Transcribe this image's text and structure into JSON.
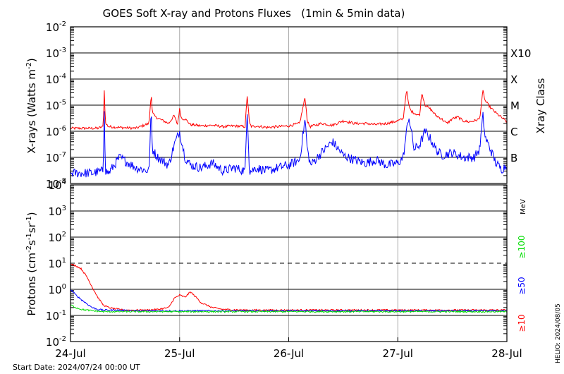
{
  "chart_data": [
    {
      "type": "line",
      "title": "GOES Soft X-ray and Protons Fluxes   (1min & 5min data)",
      "ylabel": "X-rays (Watts m",
      "ylabel_sup": "-2",
      "ylabel_close": ")",
      "y2label": "Xray Class",
      "yscale": "log",
      "ylim": [
        1e-08,
        0.01
      ],
      "xlim": [
        0,
        4
      ],
      "grid": "horizontal at each decade, vertical at each day",
      "y_ticks": [
        {
          "base": "10",
          "exp": "-2"
        },
        {
          "base": "10",
          "exp": "-3"
        },
        {
          "base": "10",
          "exp": "-4"
        },
        {
          "base": "10",
          "exp": "-5"
        },
        {
          "base": "10",
          "exp": "-6"
        },
        {
          "base": "10",
          "exp": "-7"
        },
        {
          "base": "10",
          "exp": "-8"
        }
      ],
      "class_labels": [
        {
          "label": "X10",
          "exp": -3
        },
        {
          "label": "X",
          "exp": -4
        },
        {
          "label": "M",
          "exp": -5
        },
        {
          "label": "C",
          "exp": -6
        },
        {
          "label": "B",
          "exp": -7
        }
      ],
      "series": [
        {
          "color": "#ff0000",
          "x": [
            0,
            0.25,
            0.3,
            0.31,
            0.32,
            0.35,
            0.45,
            0.6,
            0.72,
            0.74,
            0.75,
            0.78,
            0.85,
            0.9,
            0.95,
            0.98,
            1.0,
            1.02,
            1.05,
            1.1,
            1.2,
            1.3,
            1.4,
            1.5,
            1.6,
            1.62,
            1.64,
            1.66,
            1.7,
            1.8,
            1.9,
            2.0,
            2.1,
            2.15,
            2.17,
            2.19,
            2.2,
            2.3,
            2.4,
            2.5,
            2.6,
            2.7,
            2.8,
            2.9,
            3.0,
            3.05,
            3.08,
            3.1,
            3.12,
            3.15,
            3.2,
            3.22,
            3.25,
            3.3,
            3.35,
            3.4,
            3.45,
            3.5,
            3.55,
            3.6,
            3.65,
            3.7,
            3.75,
            3.78,
            3.8,
            3.85,
            3.9,
            4.0
          ],
          "values": [
            1.3e-06,
            1.3e-06,
            1.5e-06,
            4e-05,
            2e-06,
            1.5e-06,
            1.4e-06,
            1.3e-06,
            2e-06,
            3e-05,
            5e-06,
            3.5e-06,
            2.5e-06,
            2e-06,
            4e-06,
            1.8e-06,
            7e-06,
            3e-06,
            3e-06,
            1.8e-06,
            1.6e-06,
            1.7e-06,
            1.5e-06,
            1.6e-06,
            1.5e-06,
            2.5e-05,
            2e-06,
            1.5e-06,
            1.6e-06,
            1.4e-06,
            1.5e-06,
            1.6e-06,
            2e-06,
            2e-05,
            2.5e-06,
            1.6e-06,
            1.5e-06,
            2e-06,
            1.7e-06,
            2.5e-06,
            2e-06,
            2e-06,
            1.8e-06,
            2e-06,
            2.5e-06,
            3e-06,
            4e-05,
            1e-05,
            6e-06,
            5e-06,
            4e-06,
            3e-05,
            1e-05,
            7e-06,
            4e-06,
            3e-06,
            2e-06,
            3e-06,
            3.5e-06,
            2.5e-06,
            2.3e-06,
            2.5e-06,
            3e-06,
            3.5e-05,
            1.5e-05,
            8e-06,
            5e-06,
            2.3e-06
          ]
        },
        {
          "color": "#0000ff",
          "x": [
            0,
            0.2,
            0.3,
            0.31,
            0.32,
            0.35,
            0.45,
            0.6,
            0.72,
            0.74,
            0.75,
            0.8,
            0.9,
            0.95,
            1.0,
            1.05,
            1.1,
            1.2,
            1.3,
            1.4,
            1.5,
            1.6,
            1.62,
            1.64,
            1.66,
            1.7,
            1.8,
            1.9,
            2.0,
            2.1,
            2.15,
            2.17,
            2.19,
            2.2,
            2.3,
            2.4,
            2.5,
            2.6,
            2.7,
            2.8,
            2.9,
            3.0,
            3.05,
            3.1,
            3.15,
            3.2,
            3.25,
            3.3,
            3.35,
            3.4,
            3.5,
            3.6,
            3.7,
            3.75,
            3.78,
            3.8,
            3.85,
            3.9,
            3.95,
            4.0
          ],
          "values": [
            2.5e-08,
            2.5e-08,
            3e-08,
            1e-05,
            3e-08,
            2.5e-08,
            1e-07,
            4e-08,
            3e-08,
            7e-06,
            2e-07,
            1e-07,
            5e-08,
            3e-07,
            1e-06,
            1e-07,
            5e-08,
            4e-08,
            6e-08,
            3e-08,
            4e-08,
            3e-08,
            8e-06,
            3e-08,
            3e-08,
            4e-08,
            3e-08,
            4e-08,
            5e-08,
            8e-08,
            3e-06,
            2e-07,
            8e-08,
            5e-08,
            1.5e-07,
            4e-07,
            1.2e-07,
            8e-08,
            6e-08,
            8e-08,
            5e-08,
            6e-08,
            1e-07,
            4e-06,
            2e-07,
            3e-07,
            1e-06,
            5e-07,
            2e-07,
            1.2e-07,
            1.5e-07,
            1e-07,
            1e-07,
            2e-07,
            4e-06,
            6e-07,
            2e-07,
            6e-08,
            3.5e-08,
            5e-08
          ]
        }
      ]
    },
    {
      "type": "line",
      "ylabel": "Protons (cm",
      "ylabel_sup1": "-2",
      "ylabel_mid": "s",
      "ylabel_sup2": "-1",
      "ylabel_mid2": "sr",
      "ylabel_sup3": "-1",
      "ylabel_close": ")",
      "unit": "MeV",
      "yscale": "log",
      "ylim": [
        0.01,
        10000
      ],
      "xlim": [
        0,
        4
      ],
      "threshold": 10,
      "y_ticks": [
        {
          "base": "10",
          "exp": "4"
        },
        {
          "base": "10",
          "exp": "3"
        },
        {
          "base": "10",
          "exp": "2"
        },
        {
          "base": "10",
          "exp": "1"
        },
        {
          "base": "10",
          "exp": "0"
        },
        {
          "base": "10",
          "exp": "-1"
        },
        {
          "base": "10",
          "exp": "-2"
        }
      ],
      "energy_labels": [
        {
          "label": "≥100",
          "color": "#00dd00"
        },
        {
          "label": "≥50",
          "color": "#0000ff"
        },
        {
          "label": "≥10",
          "color": "#ff0000"
        }
      ],
      "series": [
        {
          "color": "#ff0000",
          "x": [
            0,
            0.05,
            0.1,
            0.15,
            0.2,
            0.25,
            0.3,
            0.35,
            0.4,
            0.45,
            0.5,
            0.6,
            0.7,
            0.8,
            0.9,
            0.95,
            1.0,
            1.05,
            1.1,
            1.15,
            1.2,
            1.3,
            1.4,
            1.6,
            2.0,
            2.5,
            3.0,
            3.5,
            4.0
          ],
          "values": [
            9,
            8,
            6,
            3,
            1.2,
            0.5,
            0.25,
            0.2,
            0.18,
            0.17,
            0.16,
            0.16,
            0.16,
            0.17,
            0.2,
            0.45,
            0.6,
            0.5,
            0.8,
            0.5,
            0.3,
            0.2,
            0.17,
            0.16,
            0.16,
            0.16,
            0.16,
            0.16,
            0.16
          ]
        },
        {
          "color": "#0000ff",
          "x": [
            0,
            0.05,
            0.1,
            0.15,
            0.2,
            0.25,
            0.3,
            0.4,
            0.6,
            1.0,
            2.0,
            3.0,
            4.0
          ],
          "values": [
            1.0,
            0.6,
            0.4,
            0.28,
            0.2,
            0.17,
            0.16,
            0.16,
            0.15,
            0.15,
            0.15,
            0.15,
            0.15
          ]
        },
        {
          "color": "#00dd00",
          "x": [
            0,
            0.05,
            0.1,
            0.2,
            0.3,
            0.5,
            1.0,
            2.0,
            3.0,
            4.0
          ],
          "values": [
            0.25,
            0.2,
            0.17,
            0.15,
            0.14,
            0.14,
            0.14,
            0.14,
            0.14,
            0.14
          ]
        }
      ]
    }
  ],
  "x_tick_labels": [
    "24-Jul",
    "25-Jul",
    "26-Jul",
    "27-Jul",
    "28-Jul"
  ],
  "footer": {
    "start_date": "Start Date: 2024/07/24 00:00 UT",
    "credit": "HELIO: 2024/08/05"
  }
}
